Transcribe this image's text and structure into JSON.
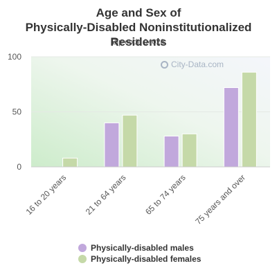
{
  "chart_data": {
    "type": "bar",
    "title": "Age and Sex of Physically-Disabled Noninstitutionalized Residents",
    "subtitle": "Zip code 94028",
    "categories": [
      "16 to 20 years",
      "21 to 64 years",
      "65 to 74 years",
      "75 years and over"
    ],
    "series": [
      {
        "name": "Physically-disabled males",
        "values": [
          0,
          40,
          28,
          72
        ],
        "color": "#c1a8dc"
      },
      {
        "name": "Physically-disabled females",
        "values": [
          8,
          47,
          30,
          86
        ],
        "color": "#c5d9a8"
      }
    ],
    "ylim": [
      0,
      100
    ],
    "yticks": [
      0,
      50,
      100
    ],
    "grid": true,
    "legend_position": "bottom",
    "watermark": "City-Data.com"
  }
}
